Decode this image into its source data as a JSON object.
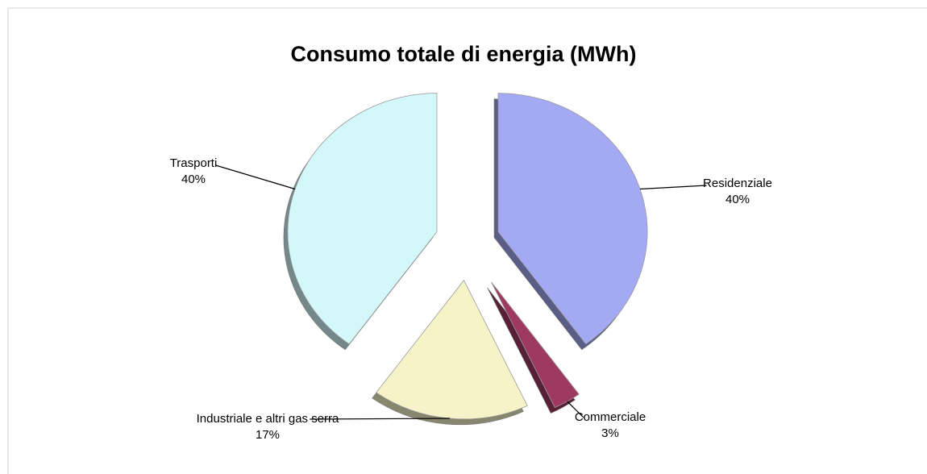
{
  "chart_data": {
    "type": "pie",
    "title": "Consumo totale di energia (MWh)",
    "categories": [
      "Residenziale",
      "Commerciale",
      "Industriale e altri gas serra",
      "Trasporti"
    ],
    "values": [
      40,
      3,
      17,
      40
    ],
    "value_labels": [
      "40%",
      "3%",
      "17%",
      "40%"
    ],
    "colors": [
      "#a4a9f4",
      "#9e3a60",
      "#f6f3c9",
      "#d4f8f9"
    ]
  }
}
